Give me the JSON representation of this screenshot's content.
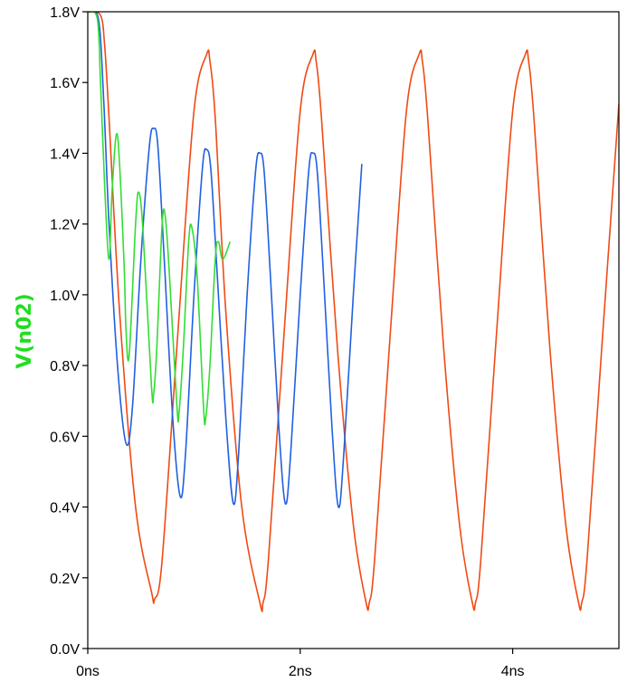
{
  "chart_data": {
    "type": "line",
    "title": "",
    "ylabel": "V(n02)",
    "ylabel_color": "#22dd22",
    "xlim": [
      0,
      5
    ],
    "ylim": [
      0,
      1.8
    ],
    "x_unit": "ns",
    "yticks": [
      0,
      0.2,
      0.4,
      0.6,
      0.8,
      1.0,
      1.2,
      1.4,
      1.6,
      1.8
    ],
    "ytick_labels": [
      "0.0V",
      "0.2V",
      "0.4V",
      "0.6V",
      "0.8V",
      "1.0V",
      "1.2V",
      "1.4V",
      "1.6V",
      "1.8V"
    ],
    "xticks": [
      0,
      2,
      4
    ],
    "xtick_labels": [
      "0ns",
      "2ns",
      "4ns"
    ],
    "grid": false,
    "series": [
      {
        "color": "#f04a14",
        "x": [
          0,
          0.12,
          0.16,
          0.2,
          0.3,
          0.45,
          0.6,
          0.63,
          0.7,
          0.85,
          1.0,
          1.12,
          1.15,
          1.2,
          1.3,
          1.45,
          1.62,
          1.65,
          1.7,
          1.85,
          2.0,
          2.12,
          2.15,
          2.2,
          2.35,
          2.5,
          2.62,
          2.65,
          2.7,
          2.85,
          3.0,
          3.12,
          3.15,
          3.2,
          3.35,
          3.5,
          3.62,
          3.65,
          3.7,
          3.85,
          4.0,
          4.12,
          4.15,
          4.2,
          4.35,
          4.5,
          4.62,
          4.65,
          4.7,
          4.85,
          5.0
        ],
        "y": [
          1.8,
          1.79,
          1.7,
          1.5,
          0.95,
          0.4,
          0.16,
          0.14,
          0.25,
          0.9,
          1.52,
          1.68,
          1.66,
          1.5,
          0.95,
          0.4,
          0.13,
          0.13,
          0.25,
          0.9,
          1.52,
          1.68,
          1.66,
          1.5,
          0.85,
          0.35,
          0.13,
          0.13,
          0.25,
          0.9,
          1.52,
          1.68,
          1.66,
          1.5,
          0.85,
          0.35,
          0.13,
          0.13,
          0.25,
          0.9,
          1.52,
          1.68,
          1.66,
          1.5,
          0.85,
          0.35,
          0.13,
          0.13,
          0.25,
          0.9,
          1.54
        ]
      },
      {
        "color": "#2060e0",
        "x": [
          0,
          0.1,
          0.15,
          0.2,
          0.28,
          0.36,
          0.42,
          0.5,
          0.58,
          0.62,
          0.66,
          0.72,
          0.8,
          0.87,
          0.92,
          1.0,
          1.08,
          1.12,
          1.16,
          1.22,
          1.3,
          1.37,
          1.42,
          1.5,
          1.58,
          1.62,
          1.66,
          1.72,
          1.8,
          1.86,
          1.91,
          2.0,
          2.08,
          2.12,
          2.16,
          2.22,
          2.3,
          2.36,
          2.41,
          2.5,
          2.58
        ],
        "y": [
          1.8,
          1.78,
          1.55,
          1.2,
          0.8,
          0.58,
          0.68,
          1.1,
          1.42,
          1.47,
          1.42,
          1.1,
          0.65,
          0.43,
          0.55,
          1.0,
          1.36,
          1.41,
          1.35,
          1.05,
          0.65,
          0.41,
          0.55,
          1.0,
          1.35,
          1.4,
          1.35,
          1.05,
          0.62,
          0.41,
          0.55,
          1.0,
          1.35,
          1.4,
          1.35,
          1.05,
          0.62,
          0.4,
          0.55,
          1.0,
          1.37
        ]
      },
      {
        "color": "#33dd33",
        "x": [
          0,
          0.09,
          0.12,
          0.16,
          0.2,
          0.23,
          0.28,
          0.34,
          0.36,
          0.39,
          0.45,
          0.48,
          0.52,
          0.6,
          0.62,
          0.65,
          0.7,
          0.73,
          0.77,
          0.84,
          0.86,
          0.9,
          0.95,
          0.98,
          1.03,
          1.09,
          1.11,
          1.15,
          1.2,
          1.23,
          1.27,
          1.34
        ],
        "y": [
          1.8,
          1.78,
          1.6,
          1.3,
          1.1,
          1.3,
          1.45,
          1.1,
          0.9,
          0.83,
          1.2,
          1.29,
          1.18,
          0.74,
          0.72,
          0.85,
          1.2,
          1.22,
          1.05,
          0.68,
          0.67,
          0.85,
          1.15,
          1.19,
          1.05,
          0.68,
          0.65,
          0.8,
          1.1,
          1.15,
          1.1,
          1.15
        ]
      }
    ]
  }
}
